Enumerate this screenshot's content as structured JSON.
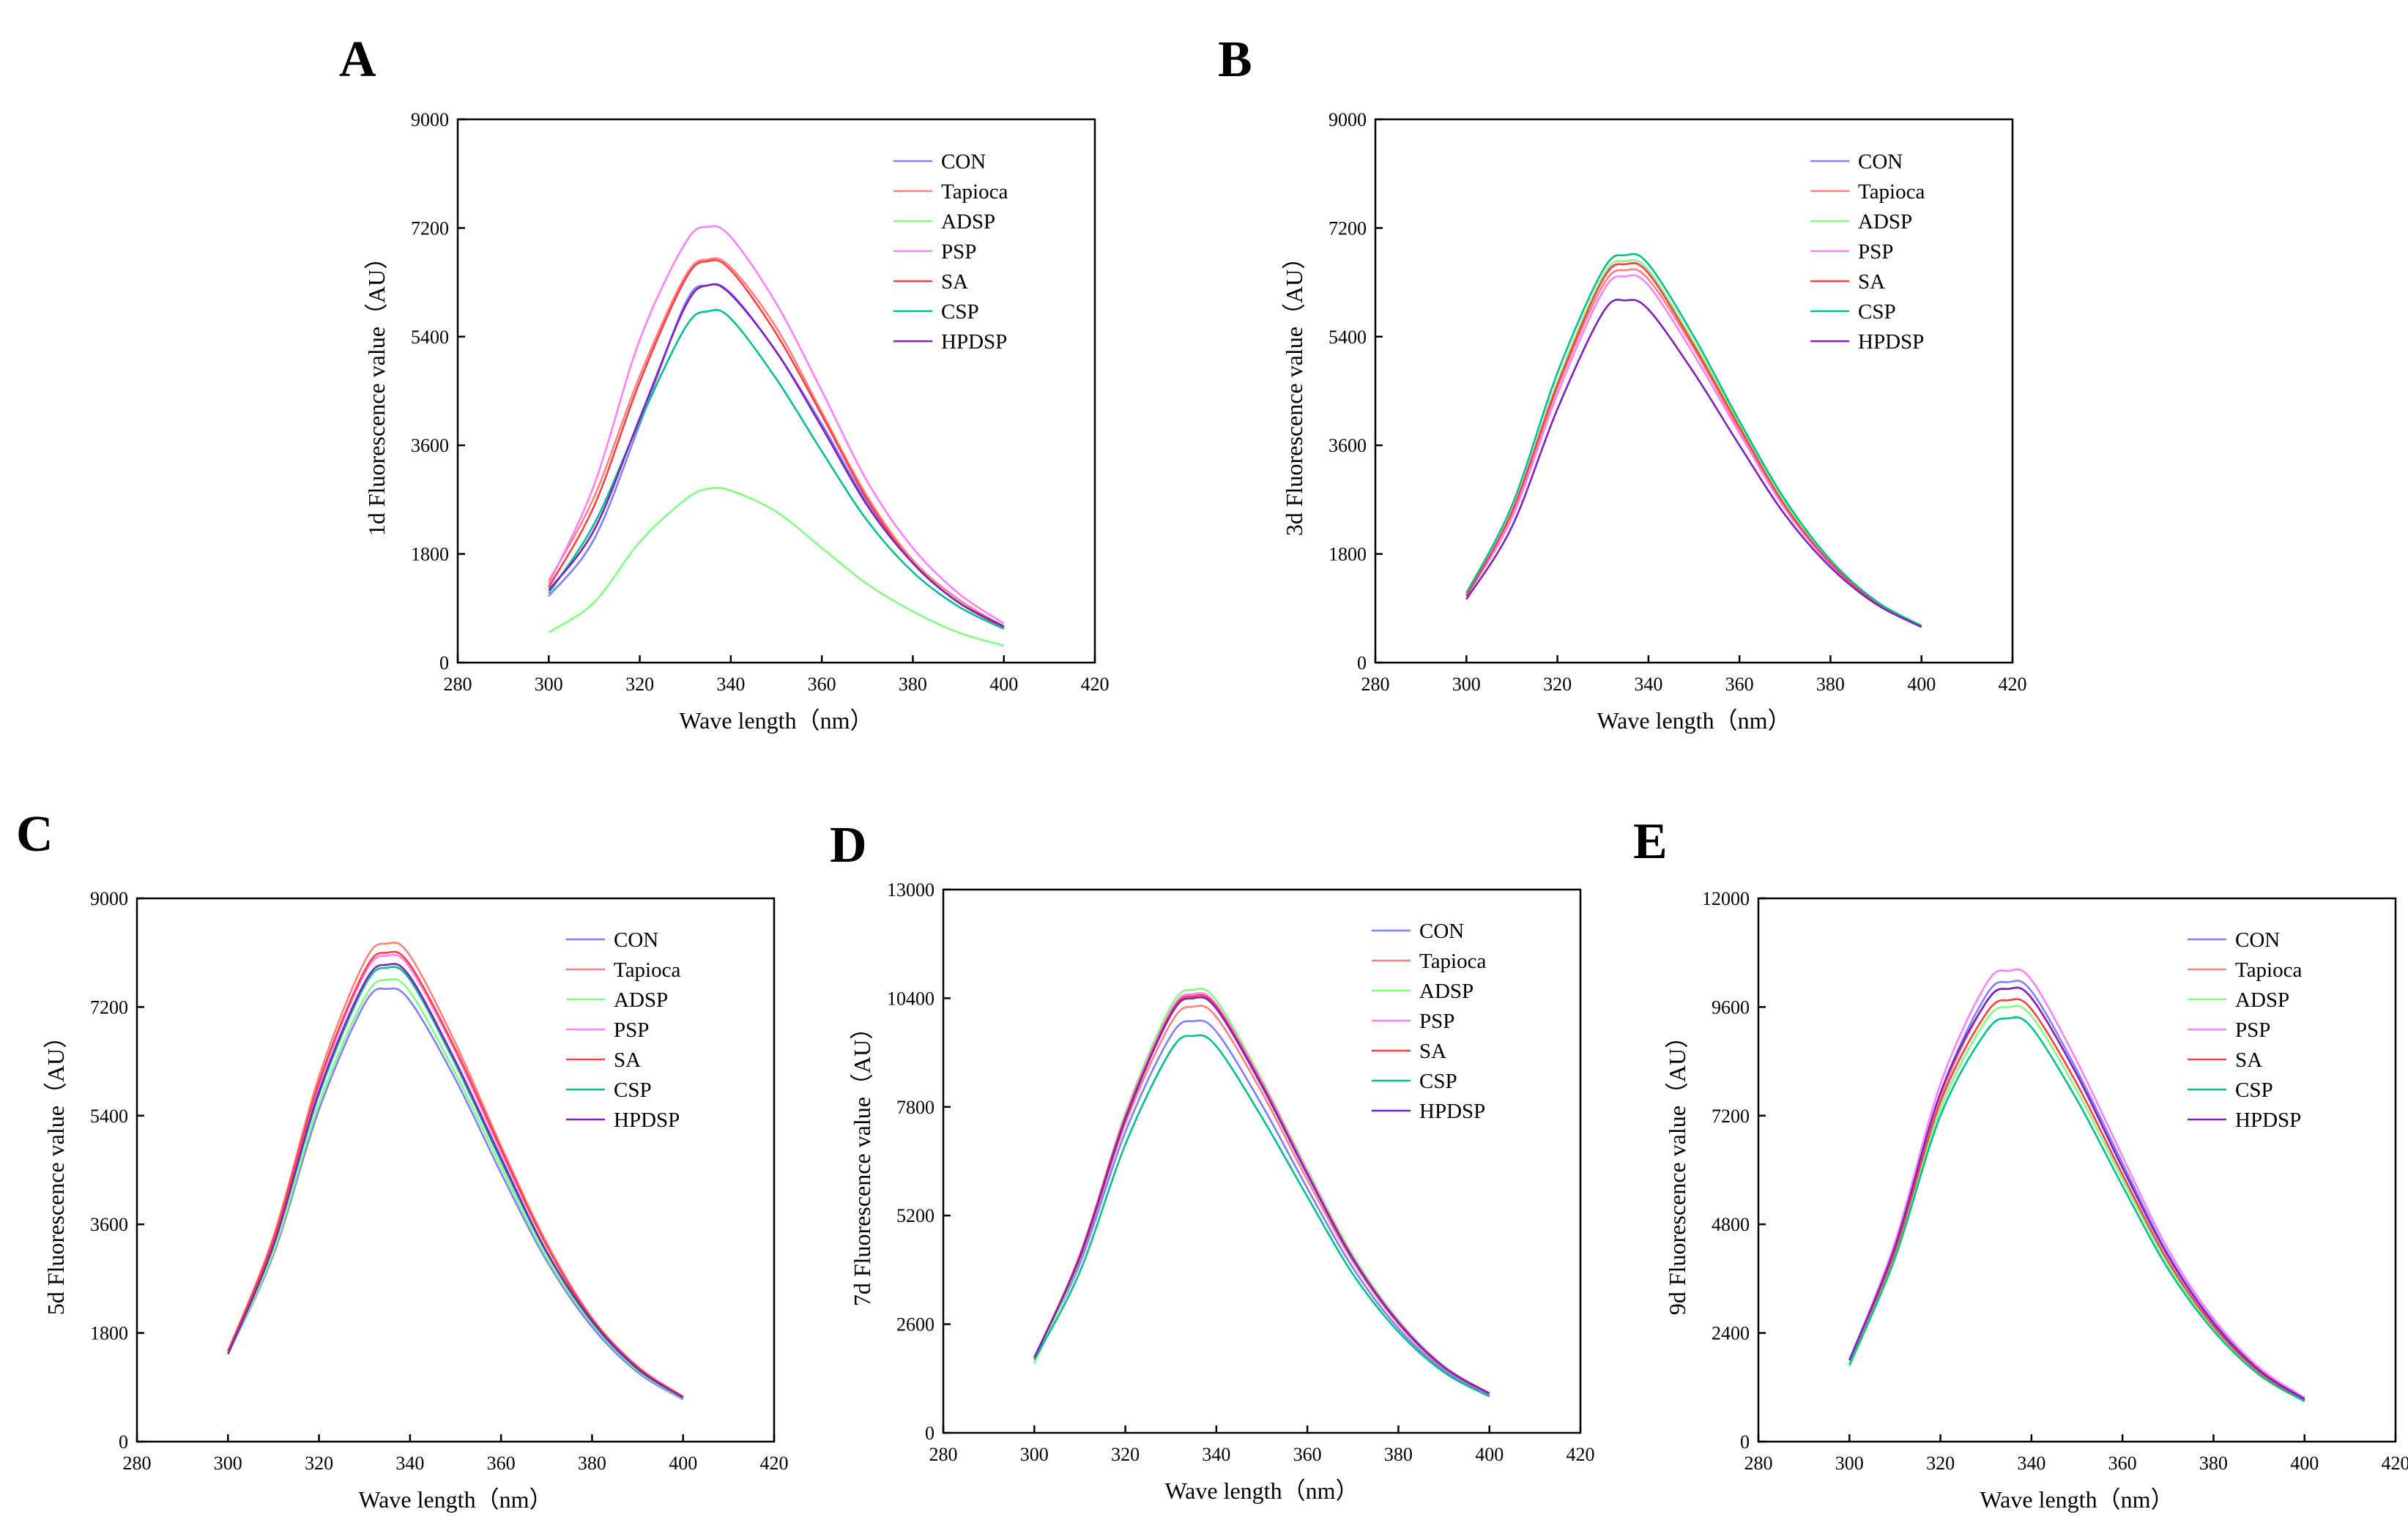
{
  "chart_data": [
    {
      "type": "line",
      "panel": "A",
      "xlabel": "Wave length（nm）",
      "ylabel": "1d Fluorescence value（AU）",
      "xlim": [
        280,
        420
      ],
      "ylim": [
        0,
        9000
      ],
      "xticks": [
        "280",
        "300",
        "320",
        "340",
        "360",
        "380",
        "400",
        "420"
      ],
      "yticks": [
        "0",
        "1800",
        "3600",
        "5400",
        "7200",
        "9000"
      ],
      "legend": "top-right",
      "x": [
        300,
        310,
        320,
        330,
        335,
        340,
        350,
        360,
        370,
        380,
        390,
        400
      ],
      "series": [
        {
          "name": "CON",
          "color": "#8080ff",
          "values": [
            1100,
            2050,
            3950,
            5950,
            6250,
            6120,
            5150,
            3950,
            2650,
            1650,
            1000,
            580
          ]
        },
        {
          "name": "Tapioca",
          "color": "#ff8080",
          "values": [
            1350,
            2750,
            4750,
            6400,
            6680,
            6550,
            5550,
            4150,
            2750,
            1700,
            1050,
            600
          ]
        },
        {
          "name": "ADSP",
          "color": "#80ff80",
          "values": [
            500,
            1000,
            2000,
            2700,
            2880,
            2850,
            2500,
            1900,
            1300,
            850,
            500,
            280
          ]
        },
        {
          "name": "PSP",
          "color": "#ff80ff",
          "values": [
            1300,
            2950,
            5350,
            6950,
            7220,
            7050,
            5950,
            4500,
            3000,
            1900,
            1150,
            650
          ]
        },
        {
          "name": "SA",
          "color": "#ff4040",
          "values": [
            1250,
            2600,
            4650,
            6350,
            6650,
            6500,
            5450,
            4100,
            2700,
            1650,
            1000,
            580
          ]
        },
        {
          "name": "CSP",
          "color": "#00c090",
          "values": [
            1150,
            2300,
            4000,
            5550,
            5820,
            5700,
            4700,
            3500,
            2350,
            1500,
            930,
            560
          ]
        },
        {
          "name": "HPDSP",
          "color": "#8020c0",
          "values": [
            1200,
            2200,
            4050,
            5900,
            6250,
            6100,
            5150,
            3900,
            2600,
            1650,
            1000,
            600
          ]
        }
      ]
    },
    {
      "type": "line",
      "panel": "B",
      "xlabel": "Wave length（nm）",
      "ylabel": "3d Fluorescence value（AU）",
      "xlim": [
        280,
        420
      ],
      "ylim": [
        0,
        9000
      ],
      "xticks": [
        "280",
        "300",
        "320",
        "340",
        "360",
        "380",
        "400",
        "420"
      ],
      "yticks": [
        "0",
        "1800",
        "3600",
        "5400",
        "7200",
        "9000"
      ],
      "legend": "top-right",
      "x": [
        300,
        310,
        320,
        330,
        335,
        340,
        350,
        360,
        370,
        380,
        390,
        400
      ],
      "series": [
        {
          "name": "CON",
          "color": "#8080ff",
          "values": [
            1100,
            2500,
            4650,
            6350,
            6600,
            6450,
            5250,
            3900,
            2600,
            1650,
            1000,
            600
          ]
        },
        {
          "name": "Tapioca",
          "color": "#ff8080",
          "values": [
            1100,
            2450,
            4550,
            6250,
            6500,
            6350,
            5200,
            3850,
            2580,
            1640,
            990,
            600
          ]
        },
        {
          "name": "ADSP",
          "color": "#80ff80",
          "values": [
            1100,
            2500,
            4650,
            6400,
            6650,
            6500,
            5300,
            3950,
            2650,
            1680,
            1010,
            600
          ]
        },
        {
          "name": "PSP",
          "color": "#ff80ff",
          "values": [
            1100,
            2400,
            4450,
            6150,
            6400,
            6250,
            5100,
            3800,
            2550,
            1620,
            980,
            590
          ]
        },
        {
          "name": "SA",
          "color": "#ff4040",
          "values": [
            1100,
            2500,
            4600,
            6350,
            6600,
            6450,
            5250,
            3900,
            2600,
            1650,
            1000,
            600
          ]
        },
        {
          "name": "CSP",
          "color": "#00c090",
          "values": [
            1150,
            2600,
            4800,
            6500,
            6750,
            6600,
            5400,
            4000,
            2700,
            1700,
            1020,
            610
          ]
        },
        {
          "name": "HPDSP",
          "color": "#8020c0",
          "values": [
            1050,
            2250,
            4200,
            5800,
            6000,
            5850,
            4800,
            3600,
            2450,
            1580,
            970,
            590
          ]
        }
      ]
    },
    {
      "type": "line",
      "panel": "C",
      "xlabel": "Wave length（nm）",
      "ylabel": "5d Fluorescence value（AU）",
      "xlim": [
        280,
        420
      ],
      "ylim": [
        0,
        9000
      ],
      "xticks": [
        "280",
        "300",
        "320",
        "340",
        "360",
        "380",
        "400",
        "420"
      ],
      "yticks": [
        "0",
        "1800",
        "3600",
        "5400",
        "7200",
        "9000"
      ],
      "legend": "top-right",
      "x": [
        300,
        310,
        320,
        330,
        335,
        340,
        350,
        360,
        370,
        380,
        390,
        400
      ],
      "series": [
        {
          "name": "CON",
          "color": "#8080ff",
          "values": [
            1450,
            3100,
            5500,
            7250,
            7500,
            7300,
            6000,
            4450,
            3000,
            1900,
            1150,
            700
          ]
        },
        {
          "name": "Tapioca",
          "color": "#ff8080",
          "values": [
            1500,
            3400,
            6050,
            7950,
            8250,
            8050,
            6600,
            4900,
            3300,
            2050,
            1250,
            750
          ]
        },
        {
          "name": "ADSP",
          "color": "#80ff80",
          "values": [
            1450,
            3150,
            5600,
            7350,
            7650,
            7450,
            6100,
            4550,
            3050,
            1950,
            1180,
            720
          ]
        },
        {
          "name": "PSP",
          "color": "#ff80ff",
          "values": [
            1500,
            3300,
            5900,
            7750,
            8050,
            7850,
            6450,
            4800,
            3250,
            2030,
            1220,
            740
          ]
        },
        {
          "name": "SA",
          "color": "#ff4040",
          "values": [
            1500,
            3350,
            5950,
            7800,
            8100,
            7900,
            6500,
            4850,
            3250,
            2030,
            1230,
            740
          ]
        },
        {
          "name": "CSP",
          "color": "#00c090",
          "values": [
            1450,
            3250,
            5750,
            7550,
            7850,
            7650,
            6250,
            4650,
            3130,
            1980,
            1200,
            730
          ]
        },
        {
          "name": "HPDSP",
          "color": "#8020c0",
          "values": [
            1450,
            3250,
            5800,
            7600,
            7900,
            7700,
            6300,
            4700,
            3150,
            2000,
            1210,
            730
          ]
        }
      ]
    },
    {
      "type": "line",
      "panel": "D",
      "xlabel": "Wave length（nm）",
      "ylabel": "7d Fluorescence value（AU）",
      "xlim": [
        280,
        420
      ],
      "ylim": [
        0,
        13000
      ],
      "xticks": [
        "280",
        "300",
        "320",
        "340",
        "360",
        "380",
        "400",
        "420"
      ],
      "yticks": [
        "0",
        "2600",
        "5200",
        "7800",
        "10400",
        "13000"
      ],
      "legend": "top-right",
      "x": [
        300,
        310,
        320,
        330,
        335,
        340,
        350,
        360,
        370,
        380,
        390,
        400
      ],
      "series": [
        {
          "name": "CON",
          "color": "#8080ff",
          "values": [
            1800,
            4050,
            7200,
            9500,
            9850,
            9600,
            7850,
            5850,
            3950,
            2500,
            1500,
            900
          ]
        },
        {
          "name": "Tapioca",
          "color": "#ff8080",
          "values": [
            1800,
            4150,
            7400,
            9800,
            10200,
            9950,
            8150,
            6050,
            4100,
            2600,
            1550,
            930
          ]
        },
        {
          "name": "ADSP",
          "color": "#80ff80",
          "values": [
            1650,
            4200,
            7650,
            10200,
            10600,
            10350,
            8450,
            6300,
            4250,
            2700,
            1600,
            950
          ]
        },
        {
          "name": "PSP",
          "color": "#ff80ff",
          "values": [
            1800,
            4250,
            7600,
            10100,
            10500,
            10250,
            8400,
            6250,
            4200,
            2670,
            1590,
            950
          ]
        },
        {
          "name": "SA",
          "color": "#ff4040",
          "values": [
            1800,
            4250,
            7550,
            10050,
            10450,
            10200,
            8350,
            6200,
            4180,
            2650,
            1580,
            940
          ]
        },
        {
          "name": "CSP",
          "color": "#00c090",
          "values": [
            1750,
            3850,
            6900,
            9150,
            9500,
            9250,
            7550,
            5650,
            3800,
            2420,
            1450,
            870
          ]
        },
        {
          "name": "HPDSP",
          "color": "#8020c0",
          "values": [
            1800,
            4200,
            7500,
            10000,
            10400,
            10150,
            8300,
            6180,
            4160,
            2640,
            1570,
            940
          ]
        }
      ]
    },
    {
      "type": "line",
      "panel": "E",
      "xlabel": "Wave length（nm）",
      "ylabel": "9d Fluorescence value（AU）",
      "xlim": [
        280,
        420
      ],
      "ylim": [
        0,
        12000
      ],
      "xticks": [
        "280",
        "300",
        "320",
        "340",
        "360",
        "380",
        "400",
        "420"
      ],
      "yticks": [
        "0",
        "2400",
        "4800",
        "7200",
        "9600",
        "12000"
      ],
      "legend": "top-right",
      "x": [
        300,
        310,
        320,
        330,
        335,
        340,
        350,
        360,
        370,
        380,
        390,
        400
      ],
      "series": [
        {
          "name": "CON",
          "color": "#8080ff",
          "values": [
            1800,
            4300,
            7700,
            9850,
            10150,
            9950,
            8200,
            6150,
            4150,
            2650,
            1600,
            950
          ]
        },
        {
          "name": "Tapioca",
          "color": "#ff8080",
          "values": [
            1800,
            4250,
            7600,
            9700,
            10000,
            9800,
            8100,
            6050,
            4100,
            2620,
            1580,
            940
          ]
        },
        {
          "name": "ADSP",
          "color": "#80ff80",
          "values": [
            1650,
            4100,
            7350,
            9300,
            9600,
            9400,
            7750,
            5800,
            3920,
            2500,
            1510,
            900
          ]
        },
        {
          "name": "PSP",
          "color": "#ff80ff",
          "values": [
            1800,
            4400,
            7900,
            10100,
            10400,
            10200,
            8400,
            6300,
            4250,
            2720,
            1640,
            970
          ]
        },
        {
          "name": "SA",
          "color": "#ff4040",
          "values": [
            1800,
            4200,
            7500,
            9450,
            9750,
            9550,
            7900,
            5900,
            3990,
            2550,
            1540,
            920
          ]
        },
        {
          "name": "CSP",
          "color": "#00c090",
          "values": [
            1700,
            4050,
            7200,
            9050,
            9350,
            9150,
            7550,
            5650,
            3820,
            2450,
            1480,
            890
          ]
        },
        {
          "name": "HPDSP",
          "color": "#8020c0",
          "values": [
            1800,
            4300,
            7700,
            9700,
            10000,
            9800,
            8100,
            6050,
            4100,
            2620,
            1580,
            940
          ]
        }
      ]
    }
  ]
}
